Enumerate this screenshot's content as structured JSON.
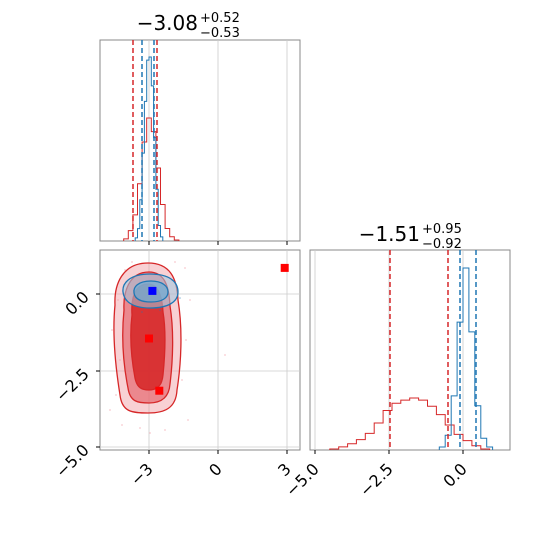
{
  "chart_data": [
    {
      "panel": "top-left histogram",
      "type": "histogram",
      "title": {
        "value": "−3.08",
        "plus": "+0.52",
        "minus": "−0.53"
      },
      "xlim": [
        -4.7,
        3.5
      ],
      "grid": true,
      "red_lines": [
        -3.6,
        -2.56
      ],
      "blue_lines": [
        -3.2,
        -2.7
      ],
      "series": [
        {
          "name": "",
          "color": "#d62728",
          "bin_edges": [
            -4.1,
            -3.9,
            -3.7,
            -3.5,
            -3.3,
            -3.1,
            -2.9,
            -2.7,
            -2.5,
            -2.3,
            -2.1,
            -1.9,
            -1.7
          ],
          "counts": [
            2,
            10,
            25,
            55,
            95,
            118,
            105,
            70,
            35,
            12,
            4,
            1
          ]
        },
        {
          "name": "",
          "color": "#1f77b4",
          "bin_edges": [
            -3.6,
            -3.5,
            -3.4,
            -3.3,
            -3.2,
            -3.1,
            -3.0,
            -2.9,
            -2.8,
            -2.7,
            -2.6,
            -2.5,
            -2.4
          ],
          "counts": [
            3,
            12,
            40,
            85,
            135,
            175,
            178,
            150,
            100,
            50,
            15,
            4
          ]
        }
      ]
    },
    {
      "panel": "top-right histogram",
      "type": "histogram",
      "title": {
        "value": "−1.51",
        "plus": "+0.95",
        "minus": "−0.92"
      },
      "xlim": [
        -5.2,
        1.6
      ],
      "grid": true,
      "red_lines": [
        -2.45,
        -0.55
      ],
      "blue_lines": [
        -0.1,
        0.35
      ],
      "series": [
        {
          "name": "",
          "color": "#d62728",
          "bin_edges": [
            -4.5,
            -4.2,
            -3.9,
            -3.6,
            -3.3,
            -3.0,
            -2.7,
            -2.4,
            -2.1,
            -1.8,
            -1.5,
            -1.2,
            -0.9,
            -0.6,
            -0.3,
            0.0,
            0.3,
            0.6,
            0.9
          ],
          "counts": [
            1,
            3,
            6,
            10,
            16,
            26,
            38,
            45,
            48,
            50,
            48,
            42,
            34,
            24,
            15,
            9,
            4,
            1
          ]
        },
        {
          "name": "",
          "color": "#1f77b4",
          "bin_edges": [
            -0.8,
            -0.6,
            -0.4,
            -0.2,
            0.0,
            0.2,
            0.4,
            0.6,
            0.8,
            1.0
          ],
          "counts": [
            3,
            15,
            55,
            130,
            185,
            120,
            45,
            12,
            3
          ]
        }
      ]
    },
    {
      "panel": "bottom-left 2D density",
      "type": "scatter",
      "xlim": [
        -4.7,
        3.5
      ],
      "ylim": [
        -5.1,
        1.4
      ],
      "grid": true,
      "x_ticks": [
        "−3",
        "0",
        "3"
      ],
      "y_ticks": [
        "0.0",
        "−2.5",
        "−5.0"
      ],
      "markers": [
        {
          "x": 2.9,
          "y": 0.85,
          "color": "#ff0000"
        },
        {
          "x": -3.0,
          "y": -1.45,
          "color": "#ff0000"
        },
        {
          "x": -2.55,
          "y": -3.15,
          "color": "#ff0000"
        },
        {
          "x": -2.85,
          "y": 0.1,
          "color": "#0000ff"
        }
      ]
    },
    {
      "panel": "bottom-right x axis",
      "type": "axis",
      "x_ticks": [
        "−5.0",
        "−2.5",
        "0.0"
      ]
    }
  ]
}
